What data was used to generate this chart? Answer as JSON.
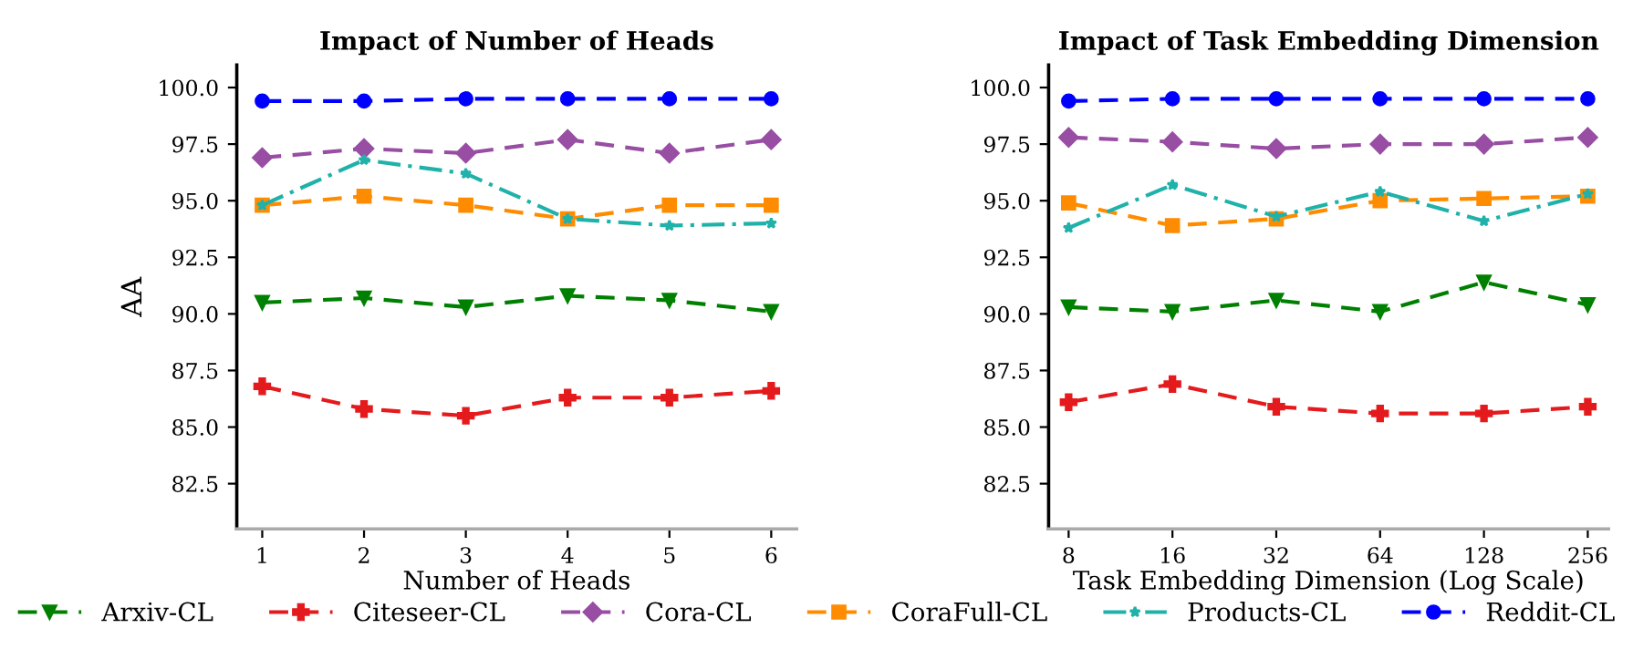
{
  "chart_data": [
    {
      "type": "line",
      "title": "Impact of Number of Heads",
      "xlabel": "Number of Heads",
      "ylabel": "AA",
      "x": [
        1,
        2,
        3,
        4,
        5,
        6
      ],
      "xlim": [
        0.75,
        6.25
      ],
      "xticks": [
        1,
        2,
        3,
        4,
        5,
        6
      ],
      "ylim": [
        80.5,
        101
      ],
      "yticks": [
        {
          "value": 82.5,
          "label": "82.5"
        },
        {
          "value": 85,
          "label": "85.0"
        },
        {
          "value": 87.5,
          "label": "87.5"
        },
        {
          "value": 90,
          "label": "90.0"
        },
        {
          "value": 92.5,
          "label": "92.5"
        },
        {
          "value": 95,
          "label": "95.0"
        },
        {
          "value": 97.5,
          "label": "97.5"
        },
        {
          "value": 100,
          "label": "100.0"
        }
      ],
      "grid": false,
      "legend": "bottom",
      "series": [
        {
          "name": "Arxiv-CL",
          "color": "#008000",
          "marker": "triangle",
          "line_style": "dashed",
          "values": [
            90.5,
            90.7,
            90.3,
            90.8,
            90.6,
            90.1
          ]
        },
        {
          "name": "Citeseer-CL",
          "color": "#e41a1c",
          "marker": "cross",
          "line_style": "dashed",
          "values": [
            86.8,
            85.8,
            85.5,
            86.3,
            86.3,
            86.6
          ]
        },
        {
          "name": "Cora-CL",
          "color": "#984ea3",
          "marker": "diamond",
          "line_style": "dashed",
          "values": [
            96.9,
            97.3,
            97.1,
            97.7,
            97.1,
            97.7
          ]
        },
        {
          "name": "CoraFull-CL",
          "color": "#ff8c00",
          "marker": "square",
          "line_style": "dashed",
          "values": [
            94.8,
            95.2,
            94.8,
            94.2,
            94.8,
            94.8
          ]
        },
        {
          "name": "Products-CL",
          "color": "#20b2aa",
          "marker": "star",
          "line_style": "dashdot",
          "values": [
            94.8,
            96.8,
            96.2,
            94.2,
            93.9,
            94.0
          ]
        },
        {
          "name": "Reddit-CL",
          "color": "#0000ff",
          "marker": "circle",
          "line_style": "dashed",
          "values": [
            99.4,
            99.4,
            99.5,
            99.5,
            99.5,
            99.5
          ]
        }
      ]
    },
    {
      "type": "line",
      "title": "Impact of Task Embedding Dimension",
      "xlabel": "Task Embedding Dimension (Log Scale)",
      "x": [
        8,
        16,
        32,
        64,
        128,
        256
      ],
      "log": "x",
      "xlim": [
        7,
        294
      ],
      "xticks": [
        8,
        16,
        32,
        64,
        128,
        256
      ],
      "ylim": [
        80.5,
        101
      ],
      "yticks": [
        {
          "value": 82.5,
          "label": "82.5"
        },
        {
          "value": 85,
          "label": "85.0"
        },
        {
          "value": 87.5,
          "label": "87.5"
        },
        {
          "value": 90,
          "label": "90.0"
        },
        {
          "value": 92.5,
          "label": "92.5"
        },
        {
          "value": 95,
          "label": "95.0"
        },
        {
          "value": 97.5,
          "label": "97.5"
        },
        {
          "value": 100,
          "label": "100.0"
        }
      ],
      "grid": false,
      "series": [
        {
          "name": "Arxiv-CL",
          "color": "#008000",
          "marker": "triangle",
          "line_style": "dashed",
          "values": [
            90.3,
            90.1,
            90.6,
            90.1,
            91.4,
            90.4
          ]
        },
        {
          "name": "Citeseer-CL",
          "color": "#e41a1c",
          "marker": "cross",
          "line_style": "dashed",
          "values": [
            86.1,
            86.9,
            85.9,
            85.6,
            85.6,
            85.9
          ]
        },
        {
          "name": "Cora-CL",
          "color": "#984ea3",
          "marker": "diamond",
          "line_style": "dashed",
          "values": [
            97.8,
            97.6,
            97.3,
            97.5,
            97.5,
            97.8
          ]
        },
        {
          "name": "CoraFull-CL",
          "color": "#ff8c00",
          "marker": "square",
          "line_style": "dashed",
          "values": [
            94.9,
            93.9,
            94.2,
            95.0,
            95.1,
            95.2
          ]
        },
        {
          "name": "Products-CL",
          "color": "#20b2aa",
          "marker": "star",
          "line_style": "dashdot",
          "values": [
            93.8,
            95.7,
            94.3,
            95.4,
            94.1,
            95.3
          ]
        },
        {
          "name": "Reddit-CL",
          "color": "#0000ff",
          "marker": "circle",
          "line_style": "dashed",
          "values": [
            99.4,
            99.5,
            99.5,
            99.5,
            99.5,
            99.5
          ]
        }
      ]
    }
  ]
}
